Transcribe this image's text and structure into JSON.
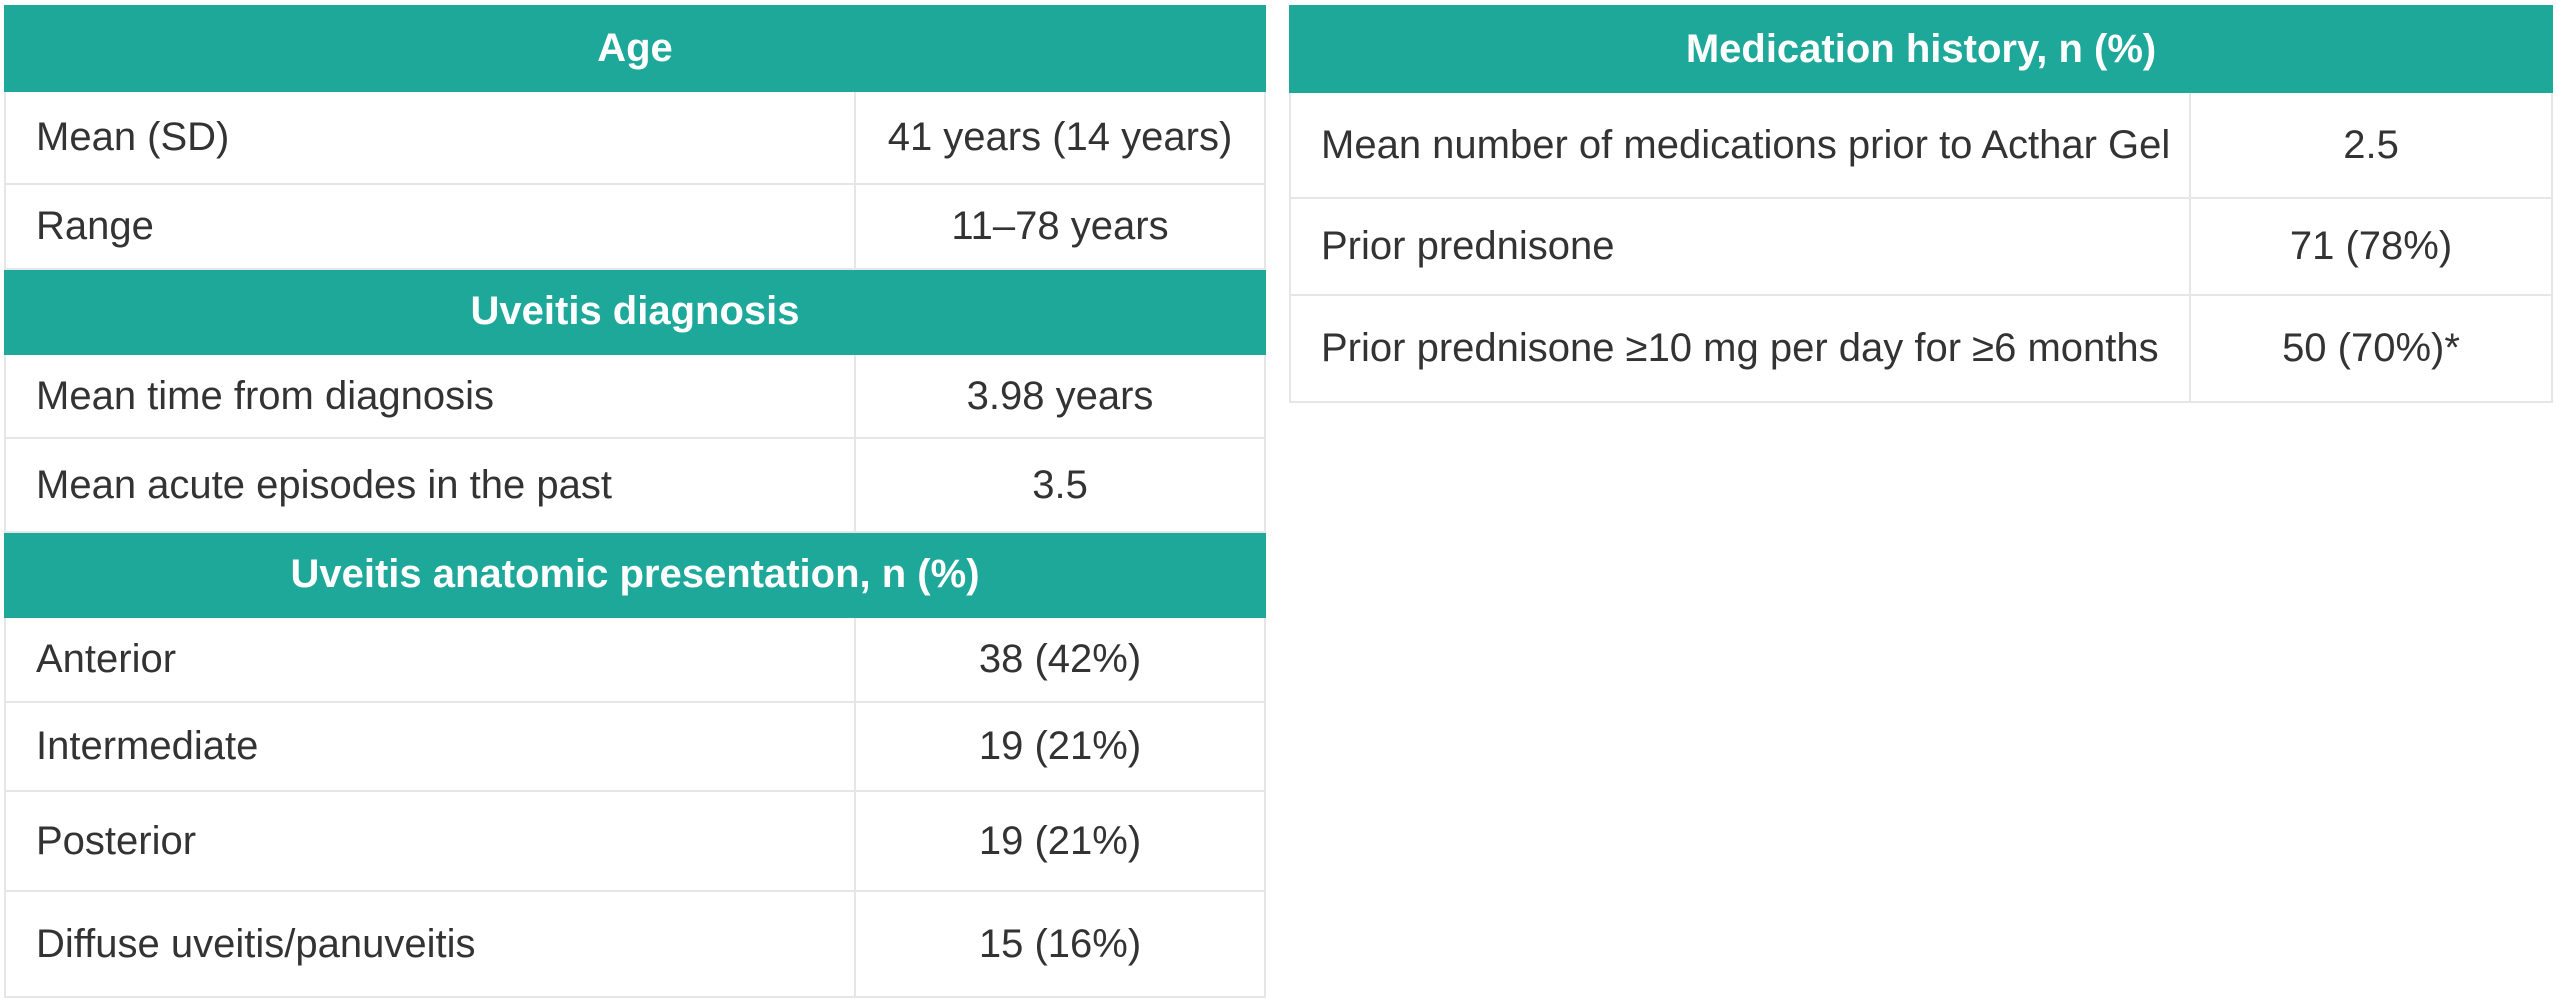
{
  "left": {
    "age": {
      "header": "Age",
      "rows": [
        {
          "label": "Mean (SD)",
          "value": "41 years (14 years)"
        },
        {
          "label": "Range",
          "value": "11–78 years"
        }
      ]
    },
    "diagnosis": {
      "header": "Uveitis diagnosis",
      "rows": [
        {
          "label": "Mean time from diagnosis",
          "value": "3.98 years"
        },
        {
          "label": "Mean acute episodes in the past",
          "value": "3.5"
        }
      ]
    },
    "anatomic": {
      "header": "Uveitis anatomic presentation, n (%)",
      "rows": [
        {
          "label": "Anterior",
          "value": "38 (42%)"
        },
        {
          "label": "Intermediate",
          "value": "19 (21%)"
        },
        {
          "label": "Posterior",
          "value": "19 (21%)"
        },
        {
          "label": "Diffuse uveitis/panuveitis",
          "value": "15 (16%)"
        }
      ]
    }
  },
  "right": {
    "medication": {
      "header": "Medication history, n (%)",
      "rows": [
        {
          "label": "Mean number of medications prior to Acthar Gel",
          "value": "2.5"
        },
        {
          "label": "Prior prednisone",
          "value": "71 (78%)"
        },
        {
          "label": "Prior prednisone ≥10 mg per day for ≥6 months",
          "value": "50 (70%)*"
        }
      ]
    }
  },
  "colors": {
    "header_bg": "#1ea89a",
    "header_text": "#ffffff",
    "border": "#e6e6e6",
    "body_text": "#333333"
  }
}
